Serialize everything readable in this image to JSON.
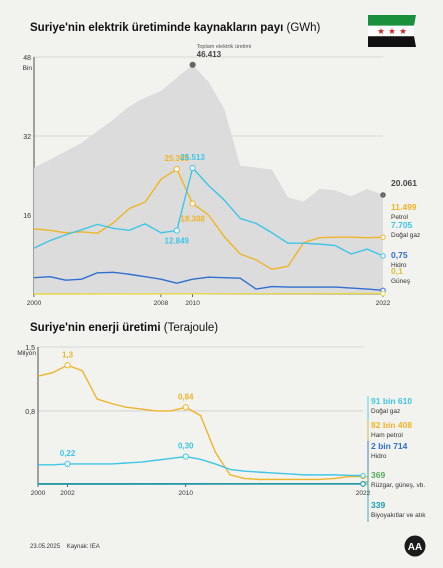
{
  "chart_data": [
    {
      "type": "line",
      "title": "Suriye'nin elektrik üretiminde kaynakların payı",
      "title_unit": "(GWh)",
      "ylabel": "Bin",
      "ylim": [
        0,
        48
      ],
      "yticks": [
        0,
        16,
        32,
        48
      ],
      "y_tick_labels": [
        "",
        "16",
        "32",
        "48"
      ],
      "xlim": [
        2000,
        2022
      ],
      "x_tick_labels": [
        "2000",
        "2008",
        "2010",
        "2022"
      ],
      "series": [
        {
          "name": "Toplam elektrik üretimi",
          "kind": "area",
          "color": "#dcdcdc",
          "x": [
            2000,
            2001,
            2002,
            2003,
            2004,
            2005,
            2006,
            2007,
            2008,
            2009,
            2010,
            2011,
            2012,
            2013,
            2014,
            2015,
            2016,
            2017,
            2018,
            2019,
            2020,
            2021,
            2022
          ],
          "values": [
            25.6,
            27.2,
            28.9,
            30.6,
            33.0,
            35.3,
            38.0,
            39.8,
            41.1,
            43.8,
            46.413,
            43.0,
            37.5,
            26.0,
            25.6,
            25.2,
            19.6,
            18.7,
            21.3,
            21.0,
            19.8,
            21.3,
            20.061
          ]
        },
        {
          "name": "Petrol",
          "color": "#f0b429",
          "x": [
            2000,
            2001,
            2002,
            2003,
            2004,
            2005,
            2006,
            2007,
            2008,
            2009,
            2010,
            2011,
            2012,
            2013,
            2014,
            2015,
            2016,
            2017,
            2018,
            2019,
            2020,
            2021,
            2022
          ],
          "values": [
            13.2,
            12.9,
            12.4,
            12.6,
            12.3,
            14.4,
            17.3,
            18.6,
            23.2,
            25.305,
            18.308,
            16.0,
            11.6,
            8.1,
            6.9,
            5.0,
            5.6,
            10.4,
            11.4,
            11.5,
            11.5,
            11.4,
            11.499
          ]
        },
        {
          "name": "Doğal gaz",
          "color": "#3ec6e6",
          "x": [
            2000,
            2001,
            2002,
            2003,
            2004,
            2005,
            2006,
            2007,
            2008,
            2009,
            2010,
            2011,
            2012,
            2013,
            2014,
            2015,
            2016,
            2017,
            2018,
            2019,
            2020,
            2021,
            2022
          ],
          "values": [
            9.3,
            10.8,
            12.0,
            13.0,
            14.1,
            13.3,
            12.9,
            14.2,
            12.4,
            12.849,
            25.513,
            22.0,
            19.0,
            15.3,
            14.3,
            12.4,
            10.3,
            10.3,
            10.1,
            9.8,
            8.1,
            9.1,
            7.705
          ]
        },
        {
          "name": "Hidro",
          "color": "#2f6fd0",
          "x": [
            2000,
            2001,
            2002,
            2003,
            2004,
            2005,
            2006,
            2007,
            2008,
            2009,
            2010,
            2011,
            2012,
            2013,
            2014,
            2015,
            2016,
            2017,
            2018,
            2019,
            2020,
            2021,
            2022
          ],
          "values": [
            3.3,
            3.5,
            2.8,
            3.0,
            4.3,
            4.4,
            4.0,
            3.5,
            3.0,
            2.2,
            3.0,
            3.4,
            3.3,
            3.2,
            1.0,
            1.5,
            1.4,
            1.4,
            1.4,
            1.4,
            1.2,
            1.0,
            0.75
          ]
        },
        {
          "name": "Güneş",
          "color": "#e8d84c",
          "x": [
            2000,
            2022
          ],
          "values": [
            0,
            0.1
          ]
        }
      ],
      "annotations": [
        {
          "series": "Toplam elektrik üretimi",
          "x": 2010,
          "label": "46.413",
          "caption": "Toplam elektrik üretimi"
        },
        {
          "series": "Petrol",
          "x": 2009,
          "label": "25.305"
        },
        {
          "series": "Petrol",
          "x": 2010,
          "label": "18.308"
        },
        {
          "series": "Doğal gaz",
          "x": 2009,
          "label": "12.849"
        },
        {
          "series": "Doğal gaz",
          "x": 2010,
          "label": "25.513"
        }
      ],
      "end_labels": [
        {
          "value": "20.061",
          "name": "",
          "color": "#444444"
        },
        {
          "value": "11.499",
          "name": "Petrol",
          "color": "#f0b429"
        },
        {
          "value": "7.705",
          "name": "Doğal gaz",
          "color": "#3ec6e6"
        },
        {
          "value": "0,75",
          "name": "Hidro",
          "color": "#2f6fd0"
        },
        {
          "value": "0,1",
          "name": "Güneş",
          "color": "#d9c23a"
        }
      ]
    },
    {
      "type": "line",
      "title": "Suriye'nin enerji üretimi",
      "title_unit": "(Terajoule)",
      "ylabel": "Milyon",
      "ylim": [
        0,
        1.5
      ],
      "yticks": [
        0,
        0.8,
        1.5
      ],
      "y_tick_labels": [
        "",
        "0,8",
        "1,5"
      ],
      "xlim": [
        2000,
        2022
      ],
      "x_tick_labels": [
        "2000",
        "2002",
        "2010",
        "2022"
      ],
      "series": [
        {
          "name": "Ham petrol",
          "color": "#f0b429",
          "x": [
            2000,
            2001,
            2002,
            2003,
            2004,
            2005,
            2006,
            2007,
            2008,
            2009,
            2010,
            2011,
            2012,
            2013,
            2014,
            2015,
            2016,
            2017,
            2018,
            2019,
            2020,
            2021,
            2022
          ],
          "values": [
            1.18,
            1.22,
            1.3,
            1.24,
            0.93,
            0.88,
            0.84,
            0.82,
            0.8,
            0.8,
            0.84,
            0.75,
            0.35,
            0.1,
            0.06,
            0.05,
            0.05,
            0.05,
            0.05,
            0.05,
            0.06,
            0.08,
            0.082408
          ]
        },
        {
          "name": "Doğal gaz",
          "color": "#3ec6e6",
          "x": [
            2000,
            2001,
            2002,
            2003,
            2004,
            2005,
            2006,
            2007,
            2008,
            2009,
            2010,
            2011,
            2012,
            2013,
            2014,
            2015,
            2016,
            2017,
            2018,
            2019,
            2020,
            2021,
            2022
          ],
          "values": [
            0.21,
            0.21,
            0.22,
            0.22,
            0.22,
            0.22,
            0.23,
            0.24,
            0.26,
            0.28,
            0.3,
            0.27,
            0.22,
            0.16,
            0.14,
            0.13,
            0.12,
            0.11,
            0.1,
            0.1,
            0.1,
            0.095,
            0.09161
          ]
        },
        {
          "name": "Hidro",
          "color": "#2f6fd0",
          "x": [
            2000,
            2022
          ],
          "values": [
            0.003,
            0.002714
          ]
        },
        {
          "name": "Rüzgar, güneş, vb.",
          "color": "#5aa85a",
          "x": [
            2000,
            2022
          ],
          "values": [
            0.0,
            0.000369
          ]
        },
        {
          "name": "Biyoyakıtlar ve atık",
          "color": "#1f9bb0",
          "x": [
            2000,
            2022
          ],
          "values": [
            0.0,
            0.000339
          ]
        }
      ],
      "annotations": [
        {
          "series": "Ham petrol",
          "x": 2002,
          "label": "1,3"
        },
        {
          "series": "Ham petrol",
          "x": 2010,
          "label": "0,84"
        },
        {
          "series": "Doğal gaz",
          "x": 2002,
          "label": "0,22"
        },
        {
          "series": "Doğal gaz",
          "x": 2010,
          "label": "0,30"
        }
      ],
      "end_labels": [
        {
          "value": "91 bin 610",
          "name": "Doğal gaz",
          "color": "#3ec6e6"
        },
        {
          "value": "82 bin 408",
          "name": "Ham petrol",
          "color": "#f0b429"
        },
        {
          "value": "2 bin 714",
          "name": "Hidro",
          "color": "#2f6fd0"
        },
        {
          "value": "369",
          "name": "Rüzgar, güneş, vb.",
          "color": "#5aa85a"
        },
        {
          "value": "339",
          "name": "Biyoyakıtlar ve atık",
          "color": "#1f9bb0"
        }
      ]
    }
  ],
  "footer": {
    "date": "23.05.2025",
    "source": "Kaynak: IEA"
  },
  "logo": {
    "text": "AA",
    "icon": "aa-logo-icon"
  },
  "flag": {
    "icon": "syria-flag-icon",
    "colors": [
      "#1a8f3c",
      "#ffffff",
      "#111111"
    ],
    "star_color": "#d01c1f"
  }
}
